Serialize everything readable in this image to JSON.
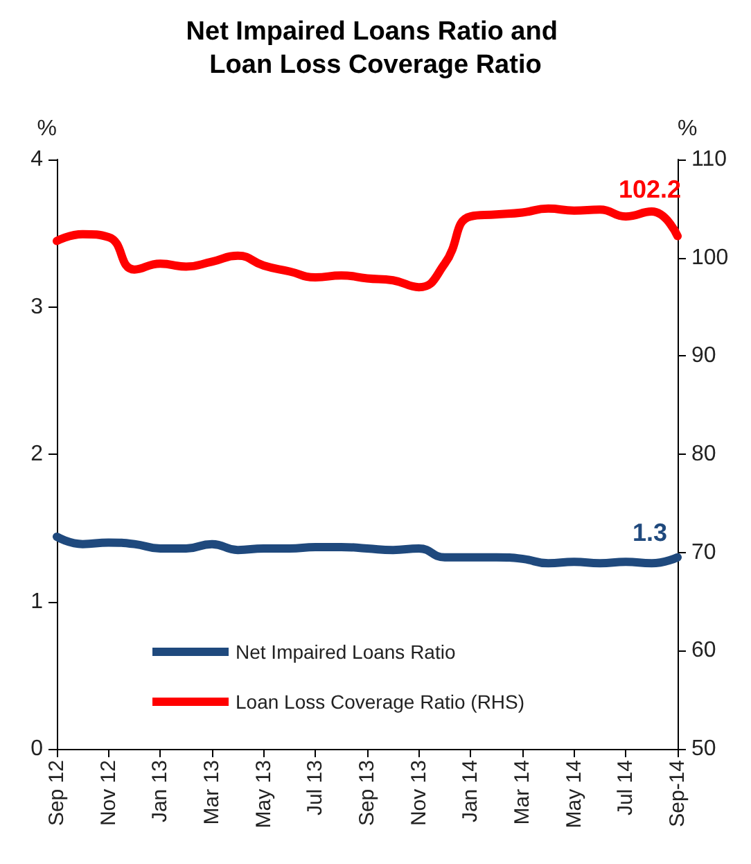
{
  "chart_data": {
    "type": "line",
    "title": "Net Impaired Loans Ratio and Loan Loss Coverage Ratio",
    "ylabel": "%",
    "y2label": "%",
    "categories": [
      "Sep 12",
      null,
      "Nov 12",
      null,
      "Jan 13",
      null,
      "Mar 13",
      null,
      "May 13",
      null,
      "Jul 13",
      null,
      "Sep 13",
      null,
      "Nov 13",
      null,
      "Jan 14",
      null,
      "Mar 14",
      null,
      "May 14",
      null,
      "Jul 14",
      null,
      "Sep-14"
    ],
    "series": [
      {
        "name": "Net Impaired Loans Ratio",
        "color": "#1f497d",
        "values": [
          1.44,
          1.39,
          1.4,
          1.39,
          1.36,
          1.36,
          1.39,
          1.35,
          1.36,
          1.36,
          1.37,
          1.37,
          1.36,
          1.35,
          1.36,
          1.3,
          1.3,
          1.3,
          1.29,
          1.26,
          1.27,
          1.26,
          1.27,
          1.26,
          1.3
        ],
        "value_labels": [
          null,
          null,
          null,
          null,
          null,
          null,
          null,
          null,
          null,
          null,
          null,
          null,
          null,
          null,
          null,
          null,
          null,
          null,
          null,
          null,
          null,
          null,
          null,
          null,
          "1.3"
        ]
      },
      {
        "name": "Loan Loss Coverage Ratio (RHS)",
        "color": "#ff0000",
        "axis": "y2",
        "values": [
          101.7,
          102.4,
          102.1,
          98.8,
          99.4,
          99.1,
          99.6,
          100.2,
          99.2,
          98.6,
          98.0,
          98.2,
          97.9,
          97.7,
          97.0,
          99.4,
          104.2,
          104.4,
          104.6,
          105.0,
          104.8,
          104.9,
          104.2,
          104.7,
          102.2
        ],
        "value_labels": [
          null,
          null,
          null,
          null,
          null,
          null,
          null,
          null,
          null,
          null,
          null,
          null,
          null,
          null,
          null,
          null,
          null,
          null,
          null,
          null,
          null,
          null,
          null,
          null,
          "102.2"
        ]
      }
    ],
    "ylim": [
      0,
      4
    ],
    "yticks": [
      0,
      1,
      2,
      3,
      4
    ],
    "y2lim": [
      50,
      110
    ],
    "y2ticks": [
      50,
      60,
      70,
      80,
      90,
      100,
      110
    ],
    "grid": false,
    "legend": "bottom left",
    "marker": "none",
    "line_style": "solid"
  }
}
